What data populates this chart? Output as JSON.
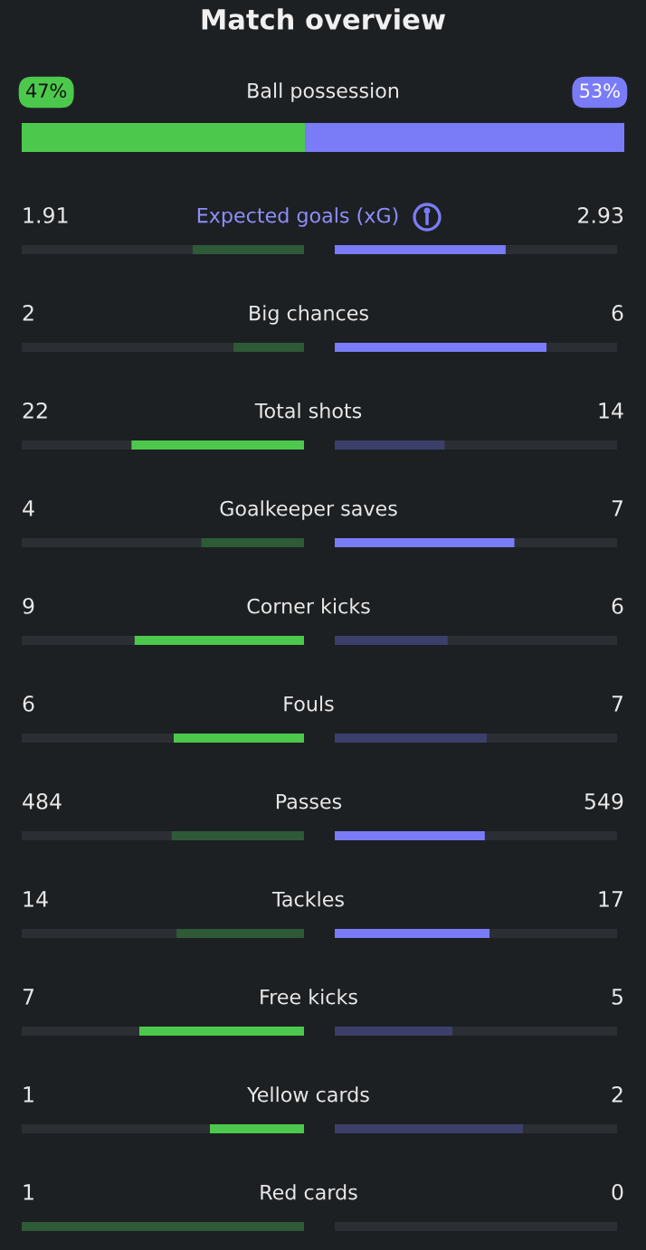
{
  "chart_data": [
    {
      "type": "other",
      "title": "Match overview",
      "categories": [
        "Ball possession"
      ],
      "series": [
        {
          "color": "#4cc94c",
          "values": [
            47
          ],
          "value_labels": [
            "47%"
          ]
        },
        {
          "color": "#7a7cf7",
          "values": [
            53
          ],
          "value_labels": [
            "53%"
          ]
        }
      ]
    },
    {
      "type": "other",
      "categories": [
        "Expected goals (xG)",
        "Big chances",
        "Total shots",
        "Goalkeeper saves",
        "Corner kicks",
        "Fouls",
        "Passes",
        "Tackles",
        "Free kicks",
        "Yellow cards",
        "Red cards"
      ],
      "data_labels": true,
      "series": [
        {
          "values": [
            1.91,
            2,
            22,
            4,
            9,
            6,
            484,
            14,
            7,
            1,
            1
          ],
          "colors": [
            "#2e5a37",
            "#2e5a37",
            "#4cc94c",
            "#2e5a37",
            "#4cc94c",
            "#4cc94c",
            "#2e5a37",
            "#2e5a37",
            "#4cc94c",
            "#4cc94c",
            "#2e5a37"
          ]
        },
        {
          "values": [
            2.93,
            6,
            14,
            7,
            6,
            7,
            549,
            17,
            5,
            2,
            0
          ],
          "colors": [
            "#7a7cf7",
            "#7a7cf7",
            "#3d3f6b",
            "#7a7cf7",
            "#3d3f6b",
            "#3d3f6b",
            "#7a7cf7",
            "#7a7cf7",
            "#3d3f6b",
            "#3d3f6b",
            "#3d3f6b"
          ]
        }
      ]
    }
  ]
}
